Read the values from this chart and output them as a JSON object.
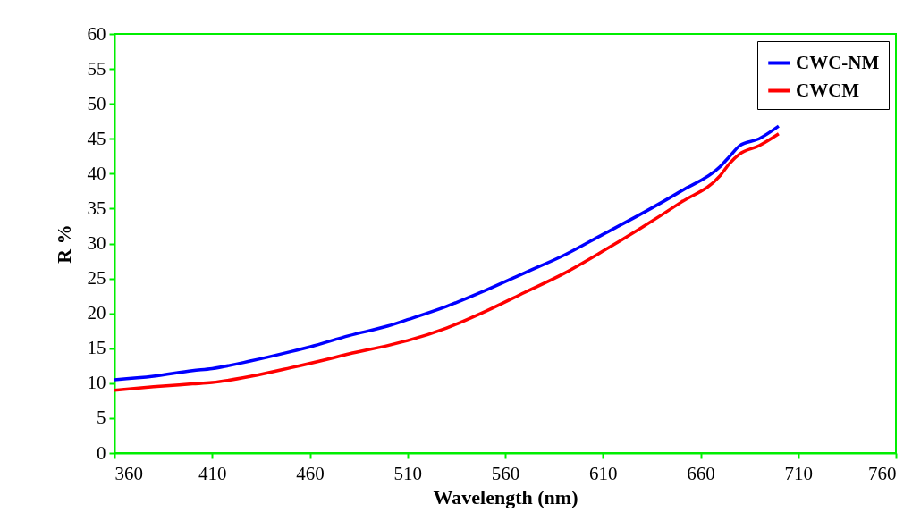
{
  "chart_data": {
    "type": "line",
    "xlabel": "Wavelength (nm)",
    "ylabel": "R %",
    "xlim": [
      360,
      760
    ],
    "xticks": [
      360,
      410,
      460,
      510,
      560,
      610,
      660,
      710,
      760
    ],
    "ylim": [
      0,
      60
    ],
    "yticks": [
      0,
      5,
      10,
      15,
      20,
      25,
      30,
      35,
      40,
      45,
      50,
      55,
      60
    ],
    "grid": false,
    "legend": "top right",
    "marker": "none",
    "line_style": "solid",
    "series": [
      {
        "name": "CWC-NM",
        "color": "#0000ff",
        "x": [
          360,
          380,
          400,
          410,
          430,
          450,
          460,
          480,
          500,
          510,
          530,
          550,
          570,
          590,
          610,
          630,
          650,
          670,
          675,
          680,
          690,
          700
        ],
        "values": [
          10.5,
          11,
          11.8,
          12.1,
          13.2,
          14.5,
          15.2,
          16.8,
          18.2,
          19.1,
          21,
          23.3,
          25.8,
          28.3,
          31.3,
          34.3,
          37.5,
          41,
          42.5,
          44,
          45,
          46.8
        ]
      },
      {
        "name": "CWCM",
        "color": "#ff0000",
        "x": [
          360,
          380,
          400,
          410,
          430,
          450,
          470,
          480,
          500,
          510,
          530,
          550,
          570,
          590,
          610,
          630,
          650,
          670,
          675,
          680,
          690,
          700
        ],
        "values": [
          9,
          9.5,
          9.9,
          10.1,
          11,
          12.2,
          13.5,
          14.2,
          15.4,
          16.1,
          17.9,
          20.3,
          23,
          25.7,
          28.9,
          32.3,
          35.9,
          39.7,
          41.5,
          42.8,
          44,
          45.7
        ]
      }
    ]
  }
}
